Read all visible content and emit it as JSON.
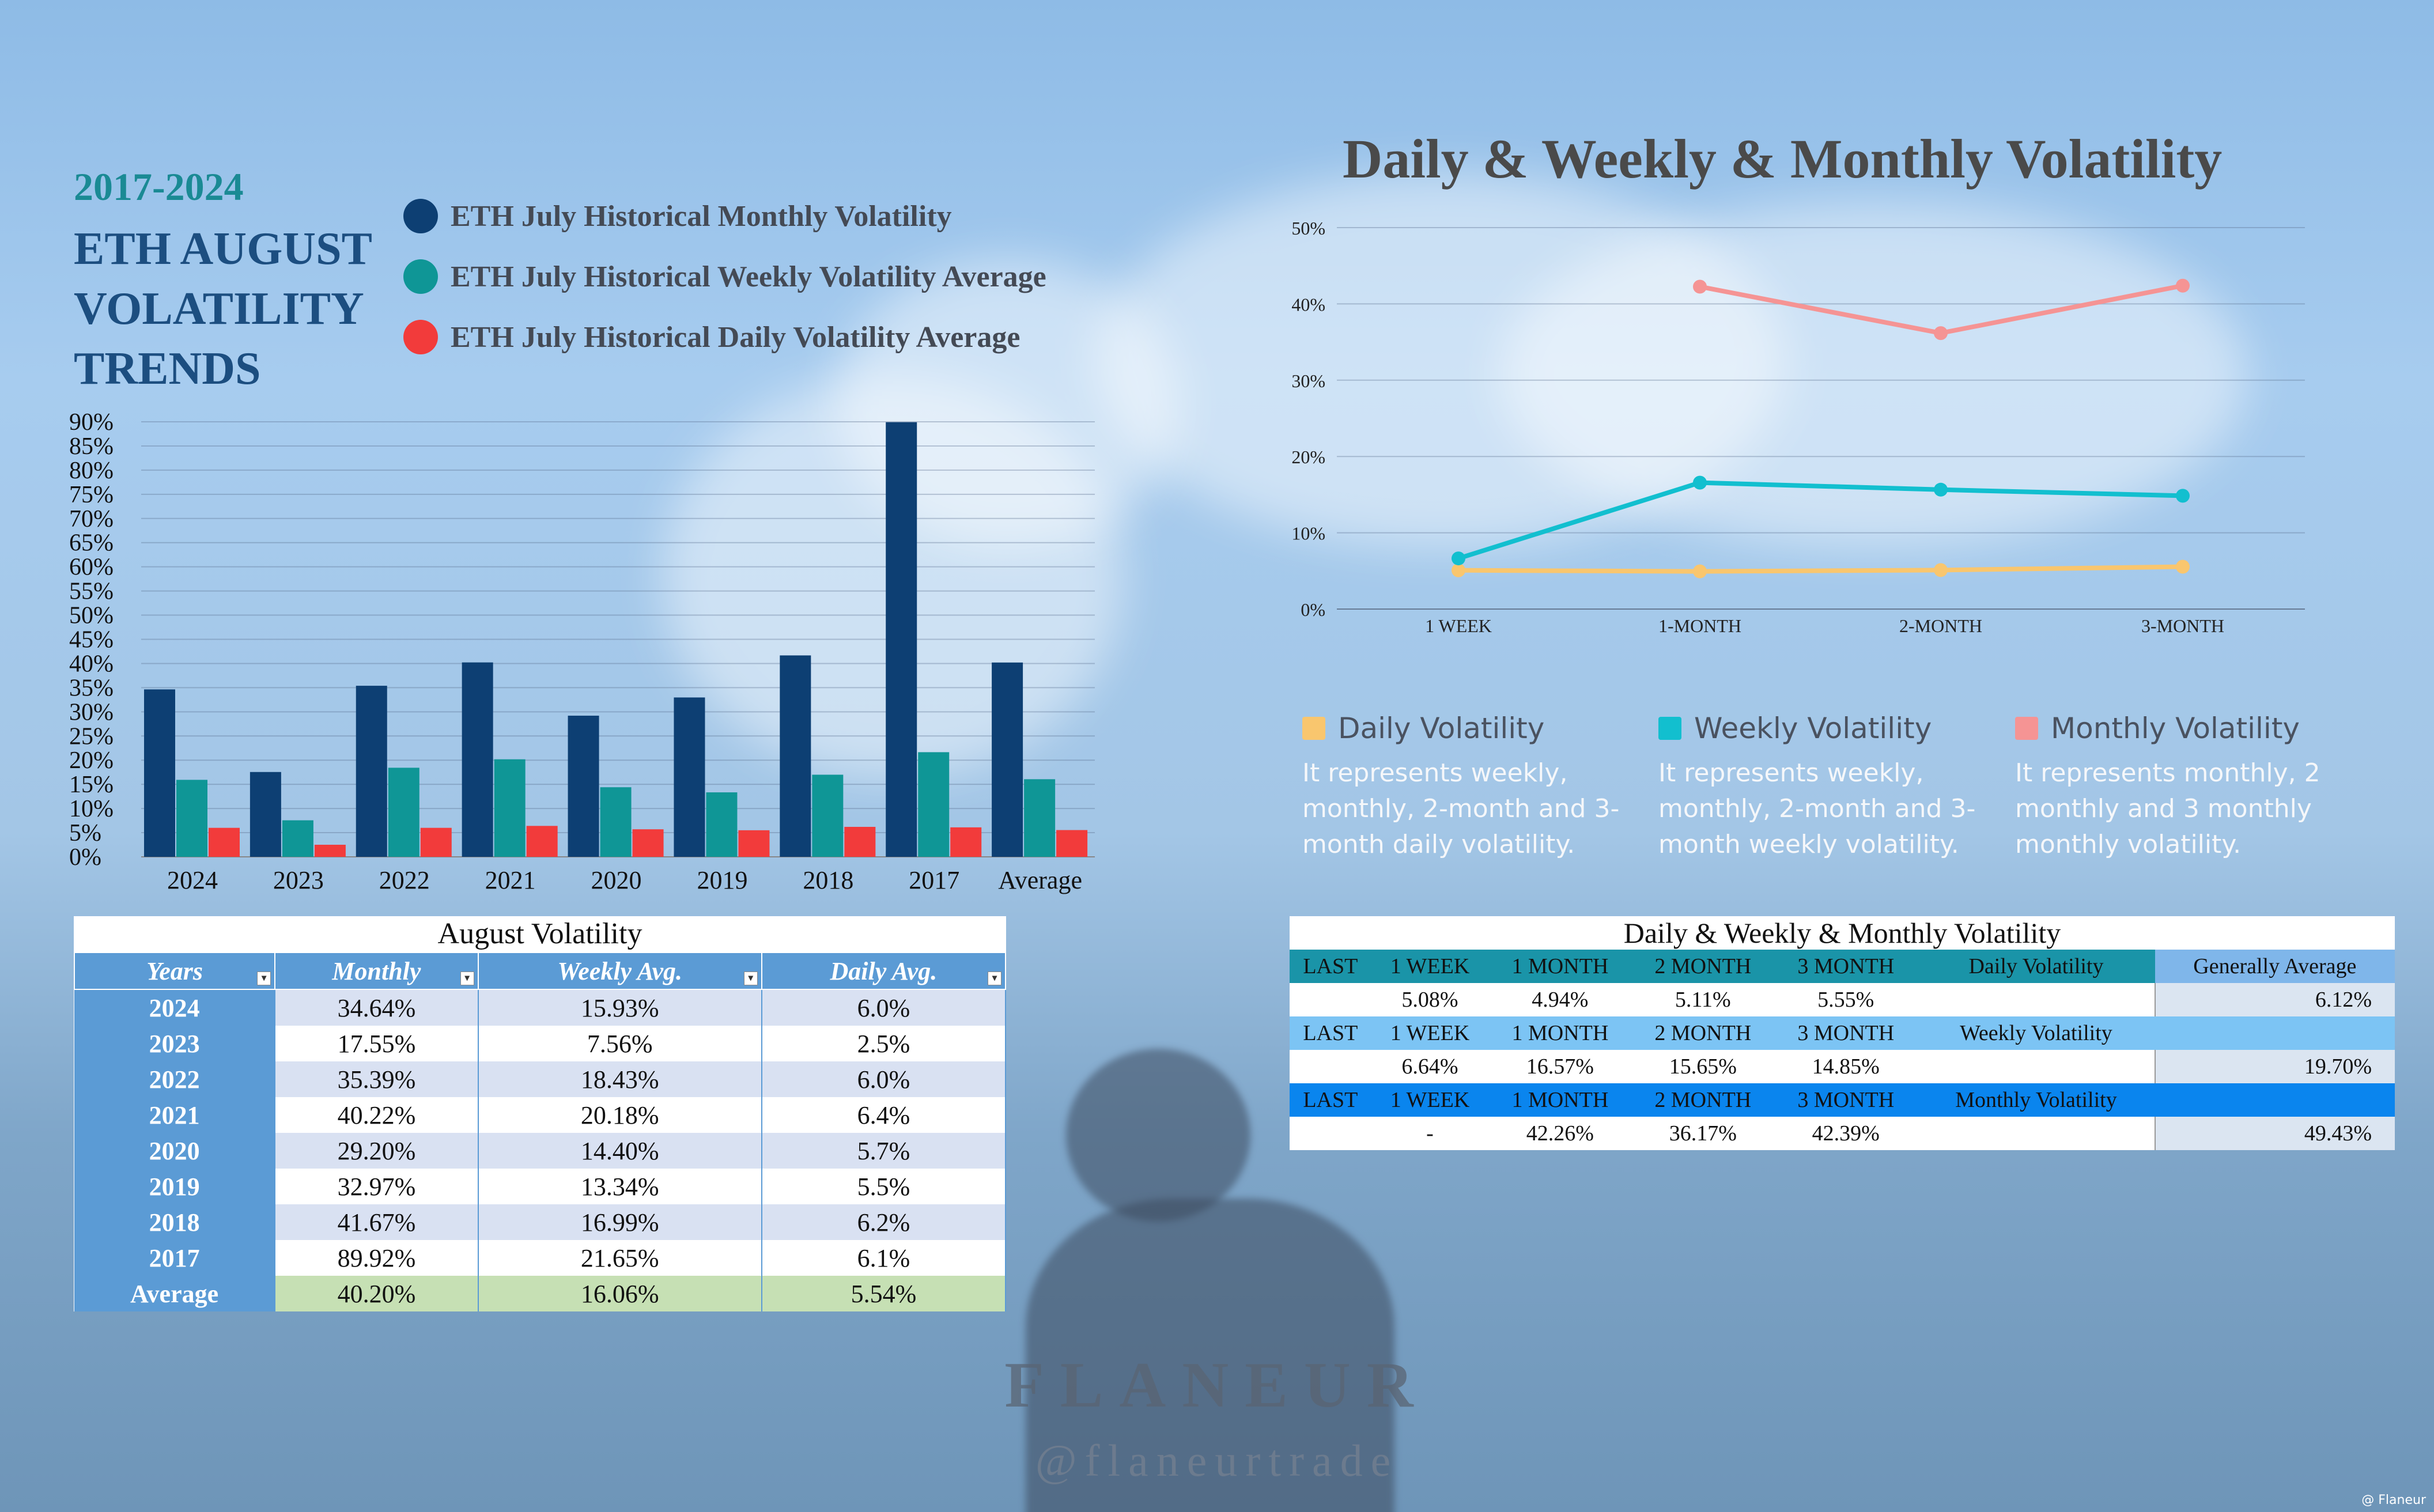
{
  "header": {
    "years": "2017-2024",
    "title": "ETH AUGUST VOLATILITY TRENDS"
  },
  "legend": [
    {
      "label": "ETH July Historical Monthly Volatility",
      "color": "#0d3f73"
    },
    {
      "label": "ETH July Historical Weekly Volatility Average",
      "color": "#0f9696"
    },
    {
      "label": "ETH July Historical Daily Volatility Average",
      "color": "#f23b3b"
    }
  ],
  "line_chart_title": "Daily & Weekly & Monthly Volatility",
  "line_legend": [
    {
      "label": "Daily Volatility",
      "color": "#f9c66e",
      "desc": "It represents weekly, monthly, 2-month and 3-month daily volatility."
    },
    {
      "label": "Weekly Volatility",
      "color": "#12bfcf",
      "desc": "It represents weekly, monthly, 2-month and 3-month weekly volatility."
    },
    {
      "label": "Monthly Volatility",
      "color": "#f59494",
      "desc": "It represents monthly, 2 monthly and 3 monthly monthly volatility."
    }
  ],
  "chart_data": [
    {
      "type": "bar",
      "categories": [
        "2024",
        "2023",
        "2022",
        "2021",
        "2020",
        "2019",
        "2018",
        "2017",
        "Average"
      ],
      "series": [
        {
          "name": "ETH July Historical Monthly Volatility",
          "values": [
            34.64,
            17.55,
            35.39,
            40.22,
            29.2,
            32.97,
            41.67,
            89.92,
            40.2
          ]
        },
        {
          "name": "ETH July Historical Weekly Volatility Average",
          "values": [
            15.93,
            7.56,
            18.43,
            20.18,
            14.4,
            13.34,
            16.99,
            21.65,
            16.06
          ]
        },
        {
          "name": "ETH July Historical Daily Volatility Average",
          "values": [
            6.0,
            2.5,
            6.0,
            6.4,
            5.7,
            5.5,
            6.2,
            6.1,
            5.54
          ]
        }
      ],
      "ylim": [
        0,
        90
      ],
      "yticks": [
        "0%",
        "5%",
        "10%",
        "15%",
        "20%",
        "25%",
        "30%",
        "35%",
        "40%",
        "45%",
        "50%",
        "55%",
        "60%",
        "65%",
        "70%",
        "75%",
        "80%",
        "85%",
        "90%"
      ],
      "grid": true
    },
    {
      "type": "line",
      "title": "Daily & Weekly & Monthly Volatility",
      "categories": [
        "1 WEEK",
        "1-MONTH",
        "2-MONTH",
        "3-MONTH"
      ],
      "series": [
        {
          "name": "Daily Volatility",
          "values": [
            5.08,
            4.94,
            5.11,
            5.55
          ]
        },
        {
          "name": "Weekly Volatility",
          "values": [
            6.64,
            16.57,
            15.65,
            14.85
          ]
        },
        {
          "name": "Monthly Volatility",
          "values": [
            null,
            42.26,
            36.17,
            42.39
          ]
        }
      ],
      "ylim": [
        0,
        50
      ],
      "yticks": [
        "0%",
        "10%",
        "20%",
        "30%",
        "40%",
        "50%"
      ],
      "grid": true,
      "legend": "bottom"
    }
  ],
  "table1": {
    "caption": "August Volatility",
    "headers": [
      "Years",
      "Monthly",
      "Weekly Avg.",
      "Daily Avg."
    ],
    "rows": [
      [
        "2024",
        "34.64%",
        "15.93%",
        "6.0%"
      ],
      [
        "2023",
        "17.55%",
        "7.56%",
        "2.5%"
      ],
      [
        "2022",
        "35.39%",
        "18.43%",
        "6.0%"
      ],
      [
        "2021",
        "40.22%",
        "20.18%",
        "6.4%"
      ],
      [
        "2020",
        "29.20%",
        "14.40%",
        "5.7%"
      ],
      [
        "2019",
        "32.97%",
        "13.34%",
        "5.5%"
      ],
      [
        "2018",
        "41.67%",
        "16.99%",
        "6.2%"
      ],
      [
        "2017",
        "89.92%",
        "21.65%",
        "6.1%"
      ]
    ],
    "average": [
      "Average",
      "40.20%",
      "16.06%",
      "5.54%"
    ]
  },
  "table2": {
    "caption": "Daily & Weekly & Monthly Volatility",
    "ga_header": "Generally Average",
    "blocks": [
      {
        "header": [
          "LAST",
          "1 WEEK",
          "1 MONTH",
          "2 MONTH",
          "3 MONTH",
          "Daily Volatility"
        ],
        "values": [
          "",
          "5.08%",
          "4.94%",
          "5.11%",
          "5.55%",
          ""
        ],
        "ga": "6.12%"
      },
      {
        "header": [
          "LAST",
          "1 WEEK",
          "1 MONTH",
          "2 MONTH",
          "3 MONTH",
          "Weekly Volatility"
        ],
        "values": [
          "",
          "6.64%",
          "16.57%",
          "15.65%",
          "14.85%",
          ""
        ],
        "ga": "19.70%"
      },
      {
        "header": [
          "LAST",
          "1 WEEK",
          "1 MONTH",
          "2 MONTH",
          "3 MONTH",
          "Monthly Volatility"
        ],
        "values": [
          "",
          "-",
          "42.26%",
          "36.17%",
          "42.39%",
          ""
        ],
        "ga": "49.43%"
      }
    ]
  },
  "brand": {
    "name": "FLANEUR",
    "handle": "@flaneurtrade",
    "watermark": "@ Flaneur"
  }
}
